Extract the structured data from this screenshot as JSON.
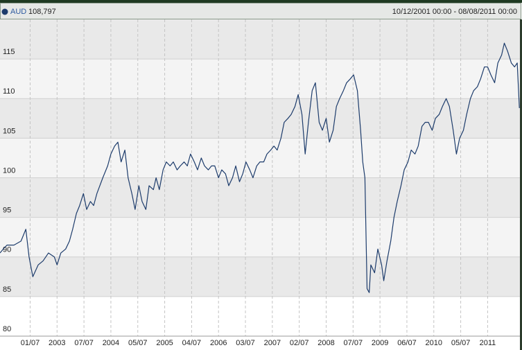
{
  "chart_data": {
    "type": "line",
    "header": {
      "name": "AUD",
      "last_value": "108,797",
      "range": "10/12/2001 00:00 - 08/08/2011 00:00"
    },
    "xlim": [
      2001.94,
      2011.6
    ],
    "xticks": [
      {
        "value": 2002.5,
        "label": "01/07"
      },
      {
        "value": 2003,
        "label": "2003"
      },
      {
        "value": 2003.5,
        "label": "07/07"
      },
      {
        "value": 2004,
        "label": "2004"
      },
      {
        "value": 2004.5,
        "label": "05/07"
      },
      {
        "value": 2005,
        "label": "2005"
      },
      {
        "value": 2005.5,
        "label": "04/07"
      },
      {
        "value": 2006,
        "label": "2006"
      },
      {
        "value": 2006.5,
        "label": "03/07"
      },
      {
        "value": 2007,
        "label": "2007"
      },
      {
        "value": 2007.5,
        "label": "02/07"
      },
      {
        "value": 2008,
        "label": "2008"
      },
      {
        "value": 2008.5,
        "label": "07/07"
      },
      {
        "value": 2009,
        "label": "2009"
      },
      {
        "value": 2009.5,
        "label": "06/07"
      },
      {
        "value": 2010,
        "label": "2010"
      },
      {
        "value": 2010.5,
        "label": "05/07"
      },
      {
        "value": 2011,
        "label": "2011"
      }
    ],
    "ylim": [
      80,
      120
    ],
    "yticks": [
      80,
      85,
      90,
      95,
      100,
      105,
      110,
      115
    ],
    "grid": true,
    "series": [
      {
        "name": "AUD",
        "color": "#1c3b6b",
        "x": [
          2001.94,
          2002.0,
          2002.07,
          2002.2,
          2002.33,
          2002.42,
          2002.48,
          2002.55,
          2002.65,
          2002.74,
          2002.84,
          2002.95,
          2003.0,
          2003.07,
          2003.16,
          2003.23,
          2003.29,
          2003.36,
          2003.42,
          2003.49,
          2003.55,
          2003.62,
          2003.68,
          2003.74,
          2003.85,
          2003.94,
          2004.0,
          2004.07,
          2004.13,
          2004.19,
          2004.26,
          2004.32,
          2004.39,
          2004.45,
          2004.52,
          2004.58,
          2004.65,
          2004.71,
          2004.79,
          2004.84,
          2004.9,
          2004.97,
          2005.03,
          2005.1,
          2005.16,
          2005.23,
          2005.29,
          2005.36,
          2005.42,
          2005.48,
          2005.55,
          2005.61,
          2005.68,
          2005.74,
          2005.81,
          2005.87,
          2005.93,
          2006.0,
          2006.06,
          2006.13,
          2006.19,
          2006.26,
          2006.32,
          2006.39,
          2006.45,
          2006.51,
          2006.58,
          2006.64,
          2006.71,
          2006.77,
          2006.84,
          2006.9,
          2006.97,
          2007.03,
          2007.09,
          2007.16,
          2007.22,
          2007.29,
          2007.35,
          2007.42,
          2007.48,
          2007.55,
          2007.61,
          2007.67,
          2007.74,
          2007.8,
          2007.87,
          2007.93,
          2008.0,
          2008.06,
          2008.13,
          2008.19,
          2008.25,
          2008.32,
          2008.38,
          2008.45,
          2008.51,
          2008.58,
          2008.64,
          2008.68,
          2008.72,
          2008.76,
          2008.8,
          2008.83,
          2008.9,
          2008.96,
          2009.03,
          2009.07,
          2009.13,
          2009.2,
          2009.26,
          2009.32,
          2009.39,
          2009.45,
          2009.52,
          2009.58,
          2009.65,
          2009.71,
          2009.78,
          2009.84,
          2009.9,
          2009.97,
          2010.03,
          2010.1,
          2010.16,
          2010.23,
          2010.29,
          2010.36,
          2010.42,
          2010.48,
          2010.55,
          2010.61,
          2010.68,
          2010.74,
          2010.81,
          2010.87,
          2010.94,
          2011.0,
          2011.06,
          2011.13,
          2011.19,
          2011.26,
          2011.31,
          2011.37,
          2011.44,
          2011.5,
          2011.55,
          2011.59
        ],
        "values": [
          90.5,
          91,
          91.5,
          91.5,
          92,
          93.5,
          90,
          87.5,
          89,
          89.5,
          90.5,
          90,
          89,
          90.5,
          91,
          92,
          93.5,
          95.5,
          96.5,
          98,
          96,
          97,
          96.5,
          98,
          100,
          101.5,
          103,
          104,
          104.5,
          102,
          103.5,
          100,
          98,
          96,
          99,
          97,
          96,
          99,
          98.5,
          100,
          98.5,
          101,
          102,
          101.5,
          102,
          101,
          101.5,
          102,
          101.5,
          103,
          102,
          101,
          102.5,
          101.5,
          101,
          101.5,
          101.5,
          100,
          101,
          100.5,
          99,
          100,
          101.5,
          99.5,
          100.5,
          102,
          101,
          100,
          101.5,
          102,
          102,
          103,
          103.5,
          104,
          103.5,
          105,
          107,
          107.5,
          108,
          109,
          110.5,
          108,
          103,
          107,
          111,
          112,
          107,
          106,
          107.5,
          104.5,
          106,
          109,
          110,
          111,
          112,
          112.5,
          113,
          111,
          106,
          102,
          100,
          86,
          85.5,
          89,
          88,
          91,
          89,
          87,
          89.5,
          92,
          95,
          97,
          99,
          101,
          102,
          103.5,
          103,
          104,
          106.5,
          107,
          107,
          106,
          107.5,
          108,
          109,
          110,
          109,
          106,
          103,
          105,
          106,
          108,
          110,
          111,
          111.5,
          112.5,
          114,
          114,
          113,
          112,
          114.5,
          115.5,
          117,
          116,
          114.5,
          114,
          114.5,
          108.8
        ]
      }
    ]
  }
}
